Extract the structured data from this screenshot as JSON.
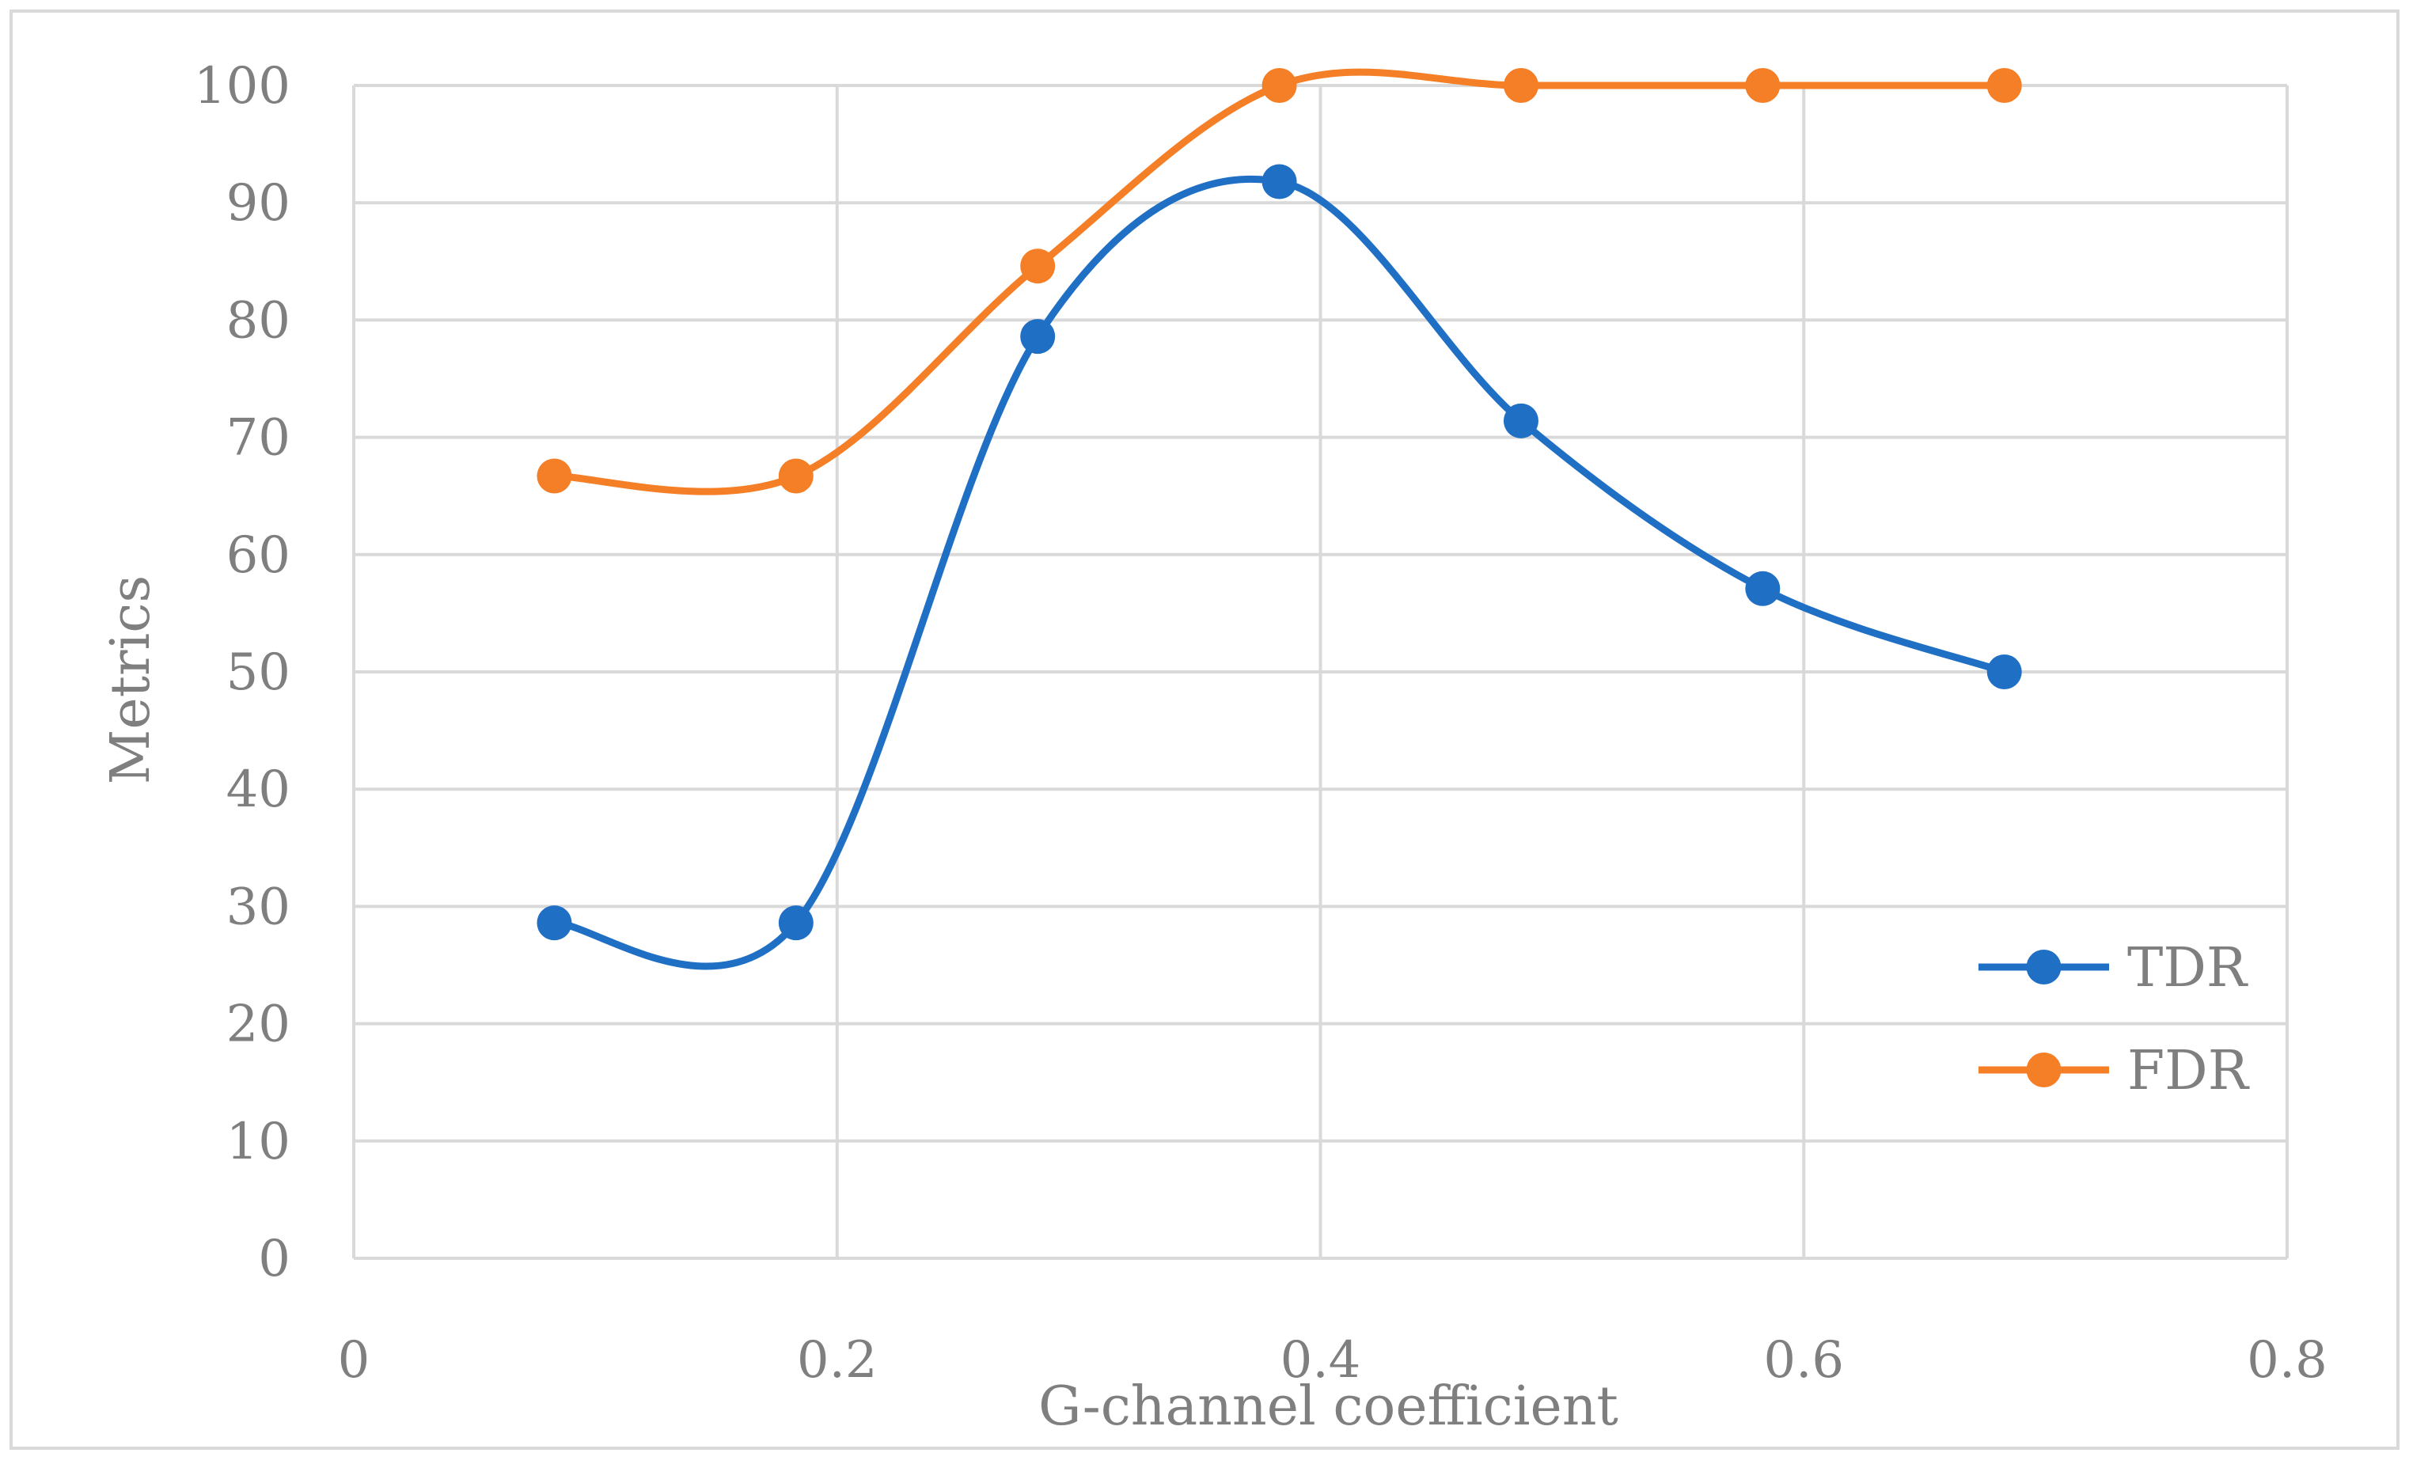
{
  "chart_data": {
    "type": "line",
    "smooth": true,
    "xlabel": "G-channel coefficient",
    "ylabel": "Metrics",
    "xlim": [
      0,
      0.8
    ],
    "ylim": [
      0,
      100
    ],
    "x_ticks": [
      0,
      0.2,
      0.4,
      0.6,
      0.8
    ],
    "y_ticks": [
      0,
      10,
      20,
      30,
      40,
      50,
      60,
      70,
      80,
      90,
      100
    ],
    "x_tick_labels": [
      "0",
      "0.2",
      "0.4",
      "0.6",
      "0.8"
    ],
    "y_tick_labels": [
      "0",
      "10",
      "20",
      "30",
      "40",
      "50",
      "60",
      "70",
      "80",
      "90",
      "100"
    ],
    "grid": true,
    "legend_position": "right",
    "series": [
      {
        "name": "TDR",
        "color": "#1f6fc5",
        "x": [
          0.083,
          0.183,
          0.283,
          0.383,
          0.483,
          0.583,
          0.683
        ],
        "y": [
          28.6,
          28.6,
          78.6,
          91.8,
          71.4,
          57.1,
          50.0
        ]
      },
      {
        "name": "FDR",
        "color": "#f57f27",
        "x": [
          0.083,
          0.183,
          0.283,
          0.383,
          0.483,
          0.583,
          0.683
        ],
        "y": [
          66.7,
          66.7,
          84.6,
          100.0,
          100.0,
          100.0,
          100.0
        ]
      }
    ]
  }
}
